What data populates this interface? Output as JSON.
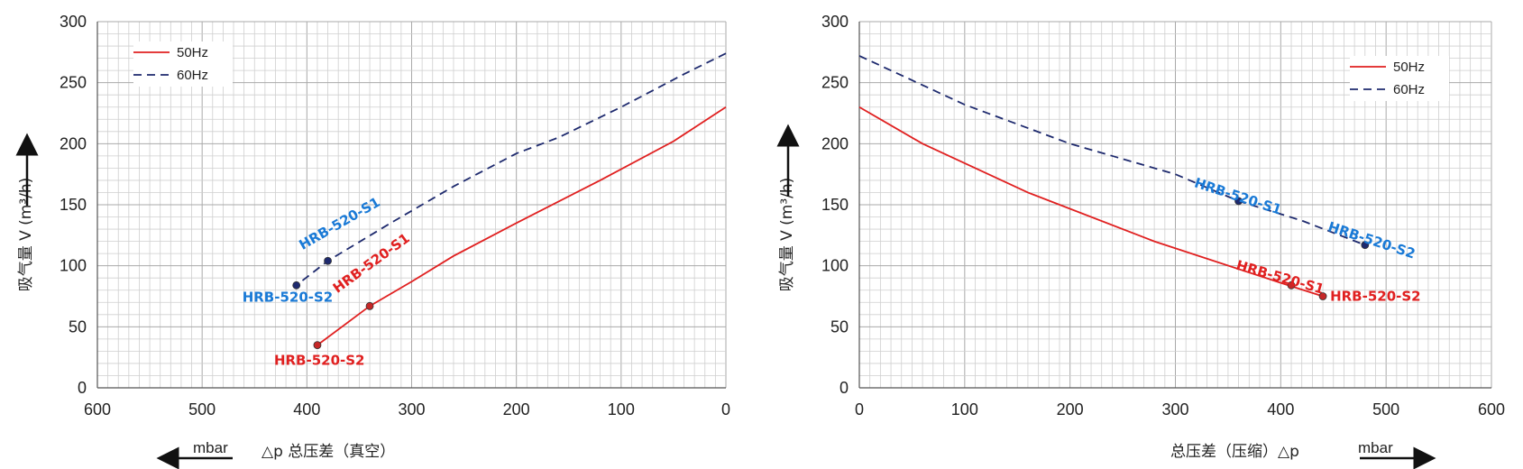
{
  "chart_data": [
    {
      "type": "line",
      "title": "",
      "ylabel": "吸气量 V (m³/h)",
      "xlabel": "△p  总压差（真空）",
      "x_unit": "mbar",
      "xlim": [
        600,
        0
      ],
      "ylim": [
        0,
        300
      ],
      "x_ticks": [
        "600",
        "500",
        "400",
        "300",
        "200",
        "100",
        "0"
      ],
      "y_ticks": [
        "0",
        "50",
        "100",
        "150",
        "200",
        "250",
        "300"
      ],
      "grid": true,
      "legend_position": "top-left",
      "legend": [
        "50Hz",
        "60Hz"
      ],
      "series": [
        {
          "name": "50Hz",
          "style": "solid",
          "color": "#e02020",
          "x": [
            0,
            50,
            120,
            200,
            260,
            300,
            340,
            390
          ],
          "y": [
            230,
            202,
            170,
            135,
            108,
            87,
            67,
            35
          ]
        },
        {
          "name": "60Hz",
          "style": "dashed",
          "color": "#1e2a6e",
          "x": [
            0,
            40,
            100,
            160,
            200,
            260,
            320,
            380,
            410
          ],
          "y": [
            274,
            257,
            230,
            205,
            192,
            165,
            135,
            104,
            84
          ]
        }
      ],
      "points": [
        {
          "label": "HRB-520-S1",
          "x": 380,
          "y": 104,
          "color": "#1a7ad6",
          "series": "60Hz"
        },
        {
          "label": "HRB-520-S2",
          "x": 410,
          "y": 84,
          "color": "#1a7ad6",
          "series": "60Hz"
        },
        {
          "label": "HRB-520-S1",
          "x": 340,
          "y": 67,
          "color": "#e02020",
          "series": "50Hz"
        },
        {
          "label": "HRB-520-S2",
          "x": 390,
          "y": 35,
          "color": "#e02020",
          "series": "50Hz"
        }
      ]
    },
    {
      "type": "line",
      "title": "",
      "ylabel": "吸气量 V (m³/h)",
      "xlabel": "总压差（压缩）△p",
      "x_unit": "mbar",
      "xlim": [
        0,
        600
      ],
      "ylim": [
        0,
        300
      ],
      "x_ticks": [
        "0",
        "100",
        "200",
        "300",
        "400",
        "500",
        "600"
      ],
      "y_ticks": [
        "0",
        "50",
        "100",
        "150",
        "200",
        "250",
        "300"
      ],
      "grid": true,
      "legend_position": "top-right",
      "legend": [
        "50Hz",
        "60Hz"
      ],
      "series": [
        {
          "name": "50Hz",
          "style": "solid",
          "color": "#e02020",
          "x": [
            0,
            60,
            160,
            280,
            400,
            440
          ],
          "y": [
            230,
            200,
            160,
            120,
            86,
            75
          ]
        },
        {
          "name": "60Hz",
          "style": "dashed",
          "color": "#1e2a6e",
          "x": [
            0,
            100,
            200,
            300,
            360,
            420,
            480
          ],
          "y": [
            272,
            232,
            200,
            175,
            153,
            137,
            117
          ]
        }
      ],
      "points": [
        {
          "label": "HRB-520-S1",
          "x": 360,
          "y": 153,
          "color": "#1a7ad6",
          "series": "60Hz"
        },
        {
          "label": "HRB-520-S2",
          "x": 480,
          "y": 117,
          "color": "#1a7ad6",
          "series": "60Hz"
        },
        {
          "label": "HRB-520-S1",
          "x": 410,
          "y": 84,
          "color": "#e02020",
          "series": "50Hz"
        },
        {
          "label": "HRB-520-S2",
          "x": 440,
          "y": 75,
          "color": "#e02020",
          "series": "50Hz"
        }
      ]
    }
  ]
}
